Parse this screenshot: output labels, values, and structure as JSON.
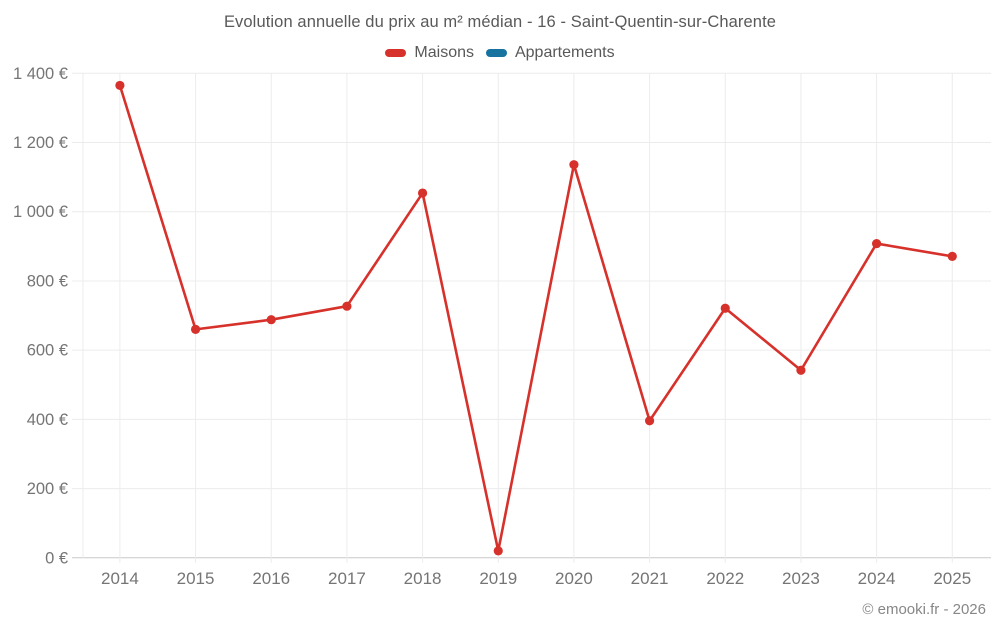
{
  "title": "Evolution annuelle du prix au m² médian - 16 - Saint-Quentin-sur-Charente",
  "legend": [
    {
      "label": "Maisons",
      "color": "#d7312b"
    },
    {
      "label": "Appartements",
      "color": "#16729e"
    }
  ],
  "copyright": "© emooki.fr - 2026",
  "chart_data": {
    "type": "line",
    "title": "Evolution annuelle du prix au m² médian - 16 - Saint-Quentin-sur-Charente",
    "x": [
      2014,
      2015,
      2016,
      2017,
      2018,
      2019,
      2020,
      2021,
      2022,
      2023,
      2024,
      2025
    ],
    "series": [
      {
        "name": "Maisons",
        "color": "#d7312b",
        "values": [
          1365,
          660,
          688,
          727,
          1054,
          20,
          1136,
          396,
          721,
          542,
          908,
          871
        ]
      },
      {
        "name": "Appartements",
        "color": "#16729e",
        "values": []
      }
    ],
    "xlabel": "",
    "ylabel": "",
    "ylim": [
      0,
      1400
    ],
    "ytick_step": 200,
    "ytick_labels": [
      "0 €",
      "200 €",
      "400 €",
      "600 €",
      "800 €",
      "1 000 €",
      "1 200 €",
      "1 400 €"
    ],
    "grid": true,
    "legend_position": "top",
    "axis_text_color": "#757575",
    "grid_color": "#ececec",
    "axis_line_color": "#c9c9c9"
  }
}
